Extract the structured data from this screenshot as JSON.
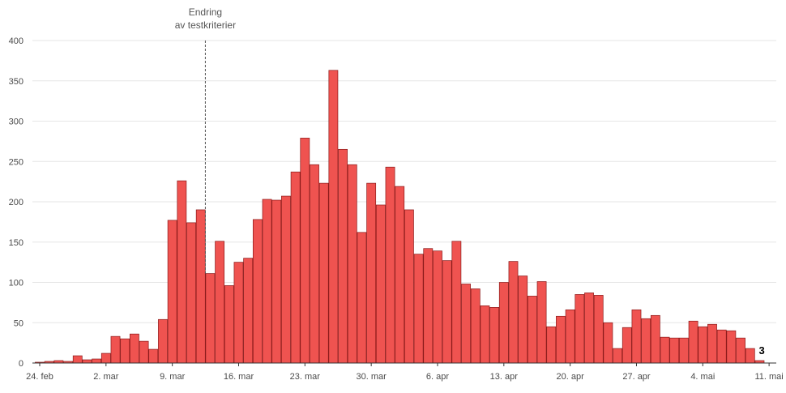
{
  "chart_data": {
    "type": "bar",
    "ylim": [
      0,
      400
    ],
    "yticks": [
      0,
      50,
      100,
      150,
      200,
      250,
      300,
      350,
      400
    ],
    "x_start": "24. feb",
    "xticks": [
      {
        "label": "24. feb",
        "day": 0
      },
      {
        "label": "2. mar",
        "day": 7
      },
      {
        "label": "9. mar",
        "day": 14
      },
      {
        "label": "16. mar",
        "day": 21
      },
      {
        "label": "23. mar",
        "day": 28
      },
      {
        "label": "30. mar",
        "day": 35
      },
      {
        "label": "6. apr",
        "day": 42
      },
      {
        "label": "13. apr",
        "day": 49
      },
      {
        "label": "20. apr",
        "day": 56
      },
      {
        "label": "27. apr",
        "day": 63
      },
      {
        "label": "4. mai",
        "day": 70
      },
      {
        "label": "11. mai",
        "day": 77
      }
    ],
    "values": [
      1,
      2,
      3,
      2,
      9,
      4,
      5,
      12,
      33,
      30,
      36,
      27,
      17,
      54,
      177,
      226,
      174,
      190,
      111,
      151,
      96,
      125,
      130,
      178,
      203,
      202,
      207,
      237,
      279,
      246,
      223,
      363,
      265,
      246,
      162,
      223,
      196,
      243,
      219,
      190,
      135,
      142,
      139,
      127,
      151,
      98,
      92,
      71,
      69,
      100,
      126,
      108,
      83,
      101,
      45,
      58,
      66,
      85,
      87,
      84,
      50,
      18,
      44,
      66,
      55,
      59,
      32,
      31,
      31,
      52,
      45,
      48,
      41,
      40,
      31,
      18,
      3
    ],
    "annotation": {
      "line1": "Endring",
      "line2": "av testkriterier",
      "day": 18
    },
    "last_value_label": "3",
    "colors": {
      "bar": "#ef5350",
      "bar_stroke": "#8b1a1a",
      "grid": "#e6e6e6",
      "axis": "#333333"
    }
  }
}
